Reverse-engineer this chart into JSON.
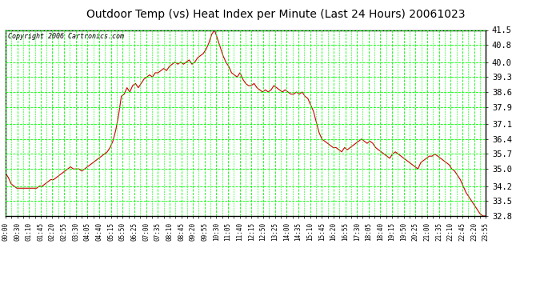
{
  "title": "Outdoor Temp (vs) Heat Index per Minute (Last 24 Hours) 20061023",
  "copyright": "Copyright 2006 Cartronics.com",
  "background_color": "#ffffff",
  "plot_bg_color": "#ffffff",
  "grid_color": "#00ff00",
  "line_color": "#cc0000",
  "border_color": "#000000",
  "ylim": [
    32.8,
    41.5
  ],
  "yticks": [
    32.8,
    33.5,
    34.2,
    35.0,
    35.7,
    36.4,
    37.1,
    37.9,
    38.6,
    39.3,
    40.0,
    40.8,
    41.5
  ],
  "xtick_labels": [
    "00:00",
    "00:30",
    "01:10",
    "01:45",
    "02:20",
    "02:55",
    "03:30",
    "04:05",
    "04:40",
    "05:15",
    "05:50",
    "06:25",
    "07:00",
    "07:35",
    "08:10",
    "08:45",
    "09:20",
    "09:55",
    "10:30",
    "11:05",
    "11:40",
    "12:15",
    "12:50",
    "13:25",
    "14:00",
    "14:35",
    "15:10",
    "15:45",
    "16:20",
    "16:55",
    "17:30",
    "18:05",
    "18:40",
    "19:15",
    "19:50",
    "20:25",
    "21:00",
    "21:35",
    "22:10",
    "22:45",
    "23:20",
    "23:55"
  ],
  "data_y": [
    34.8,
    34.6,
    34.3,
    34.2,
    34.1,
    34.1,
    34.1,
    34.1,
    34.1,
    34.1,
    34.1,
    34.1,
    34.2,
    34.2,
    34.3,
    34.4,
    34.5,
    34.5,
    34.6,
    34.7,
    34.8,
    34.9,
    35.0,
    35.1,
    35.0,
    35.0,
    35.0,
    34.9,
    35.0,
    35.1,
    35.2,
    35.3,
    35.4,
    35.5,
    35.6,
    35.7,
    35.8,
    36.0,
    36.3,
    36.8,
    37.5,
    38.4,
    38.5,
    38.8,
    38.6,
    38.9,
    39.0,
    38.8,
    39.0,
    39.2,
    39.3,
    39.4,
    39.3,
    39.5,
    39.5,
    39.6,
    39.7,
    39.6,
    39.8,
    39.9,
    40.0,
    39.9,
    40.0,
    39.9,
    40.0,
    40.1,
    39.9,
    40.0,
    40.2,
    40.3,
    40.4,
    40.6,
    40.9,
    41.3,
    41.5,
    41.1,
    40.7,
    40.3,
    40.0,
    39.8,
    39.5,
    39.4,
    39.3,
    39.5,
    39.2,
    39.0,
    38.9,
    38.9,
    39.0,
    38.8,
    38.7,
    38.6,
    38.7,
    38.6,
    38.7,
    38.9,
    38.8,
    38.7,
    38.6,
    38.7,
    38.6,
    38.5,
    38.5,
    38.6,
    38.5,
    38.6,
    38.4,
    38.3,
    38.0,
    37.7,
    37.2,
    36.7,
    36.4,
    36.3,
    36.2,
    36.1,
    36.0,
    36.0,
    35.9,
    35.8,
    36.0,
    35.9,
    36.0,
    36.1,
    36.2,
    36.3,
    36.4,
    36.3,
    36.2,
    36.3,
    36.2,
    36.0,
    35.9,
    35.8,
    35.7,
    35.6,
    35.5,
    35.7,
    35.8,
    35.7,
    35.6,
    35.5,
    35.4,
    35.3,
    35.2,
    35.1,
    35.0,
    35.3,
    35.4,
    35.5,
    35.6,
    35.6,
    35.7,
    35.6,
    35.5,
    35.4,
    35.3,
    35.2,
    35.0,
    34.9,
    34.7,
    34.5,
    34.2,
    33.9,
    33.7,
    33.5,
    33.3,
    33.1,
    32.9,
    32.8,
    32.8
  ],
  "title_fontsize": 10,
  "copyright_fontsize": 6,
  "ytick_fontsize": 7.5,
  "xtick_fontsize": 5.5
}
